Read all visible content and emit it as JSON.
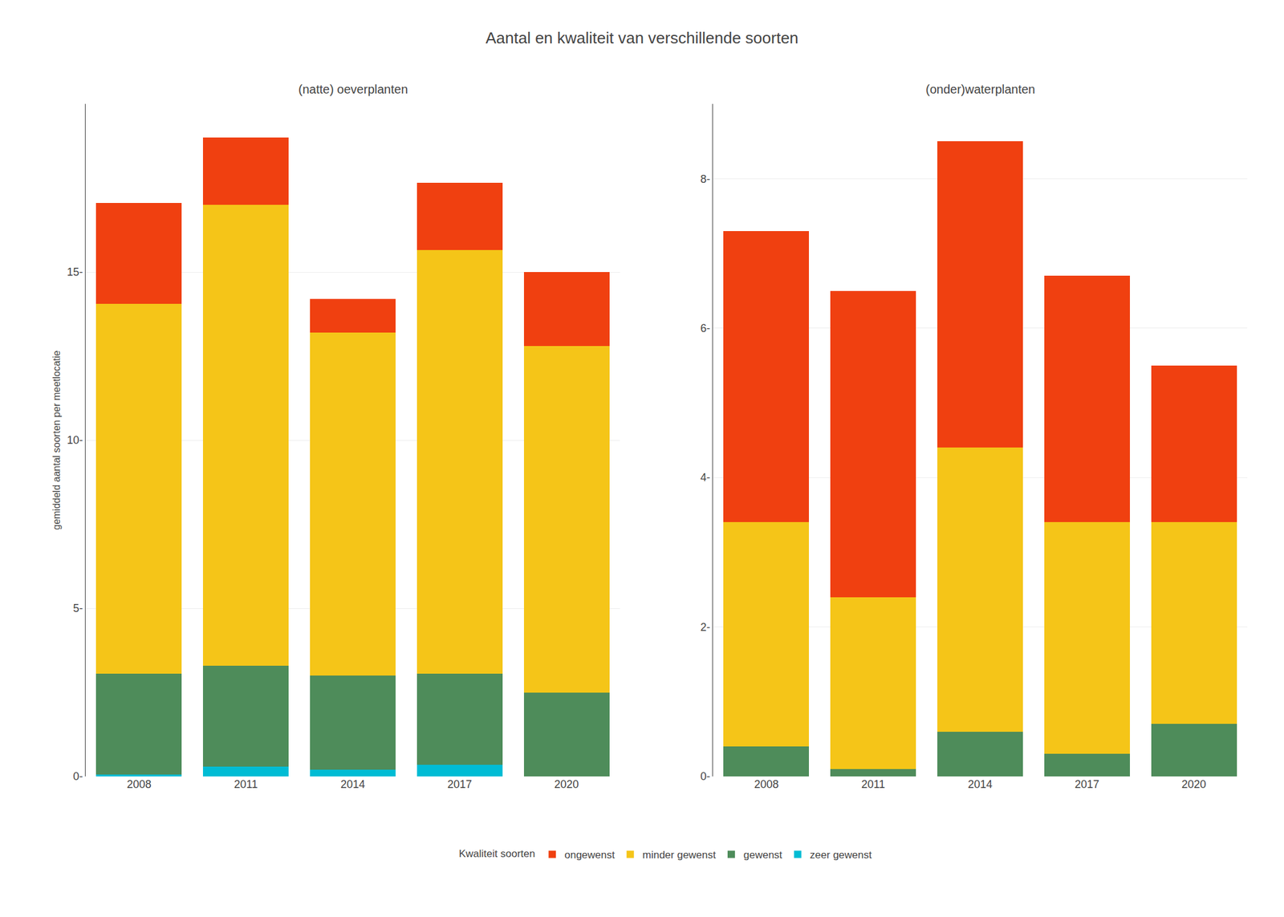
{
  "title": "Aantal en kwaliteit van verschillende soorten",
  "legend_title": "Kwaliteit soorten",
  "chart_data": [
    {
      "type": "bar",
      "stacked": true,
      "title": "(natte) oeverplanten",
      "ylabel": "gemiddeld aantal soorten per meetlocatie",
      "categories": [
        "2008",
        "2011",
        "2014",
        "2017",
        "2020"
      ],
      "series": [
        {
          "name": "zeer gewenst",
          "color": "#00BCD4",
          "values": [
            0.05,
            0.3,
            0.2,
            0.35,
            0.0
          ]
        },
        {
          "name": "gewenst",
          "color": "#4E8C5A",
          "values": [
            3.0,
            3.0,
            2.8,
            2.7,
            2.5
          ]
        },
        {
          "name": "minder gewenst",
          "color": "#F5C518",
          "values": [
            11.0,
            13.7,
            10.2,
            12.6,
            10.3
          ]
        },
        {
          "name": "ongewenst",
          "color": "#F04010",
          "values": [
            3.0,
            2.0,
            1.0,
            2.0,
            2.2
          ]
        }
      ],
      "ylim": [
        0,
        20
      ],
      "yticks": [
        {
          "value": 0,
          "label": "0-"
        },
        {
          "value": 5,
          "label": "5-"
        },
        {
          "value": 10,
          "label": "10-"
        },
        {
          "value": 15,
          "label": "15-"
        }
      ],
      "grid": true,
      "legend": "bottom"
    },
    {
      "type": "bar",
      "stacked": true,
      "title": "(onder)waterplanten",
      "categories": [
        "2008",
        "2011",
        "2014",
        "2017",
        "2020"
      ],
      "series": [
        {
          "name": "zeer gewenst",
          "color": "#00BCD4",
          "values": [
            0.0,
            0.0,
            0.0,
            0.0,
            0.0
          ]
        },
        {
          "name": "gewenst",
          "color": "#4E8C5A",
          "values": [
            0.4,
            0.1,
            0.6,
            0.3,
            0.7
          ]
        },
        {
          "name": "minder gewenst",
          "color": "#F5C518",
          "values": [
            3.0,
            2.3,
            3.8,
            3.1,
            2.7
          ]
        },
        {
          "name": "ongewenst",
          "color": "#F04010",
          "values": [
            3.9,
            4.1,
            4.1,
            3.3,
            2.1
          ]
        }
      ],
      "ylim": [
        0,
        9
      ],
      "yticks": [
        {
          "value": 0,
          "label": "0-"
        },
        {
          "value": 2,
          "label": "2-"
        },
        {
          "value": 4,
          "label": "4-"
        },
        {
          "value": 6,
          "label": "6-"
        },
        {
          "value": 8,
          "label": "8-"
        }
      ],
      "grid": true
    }
  ]
}
